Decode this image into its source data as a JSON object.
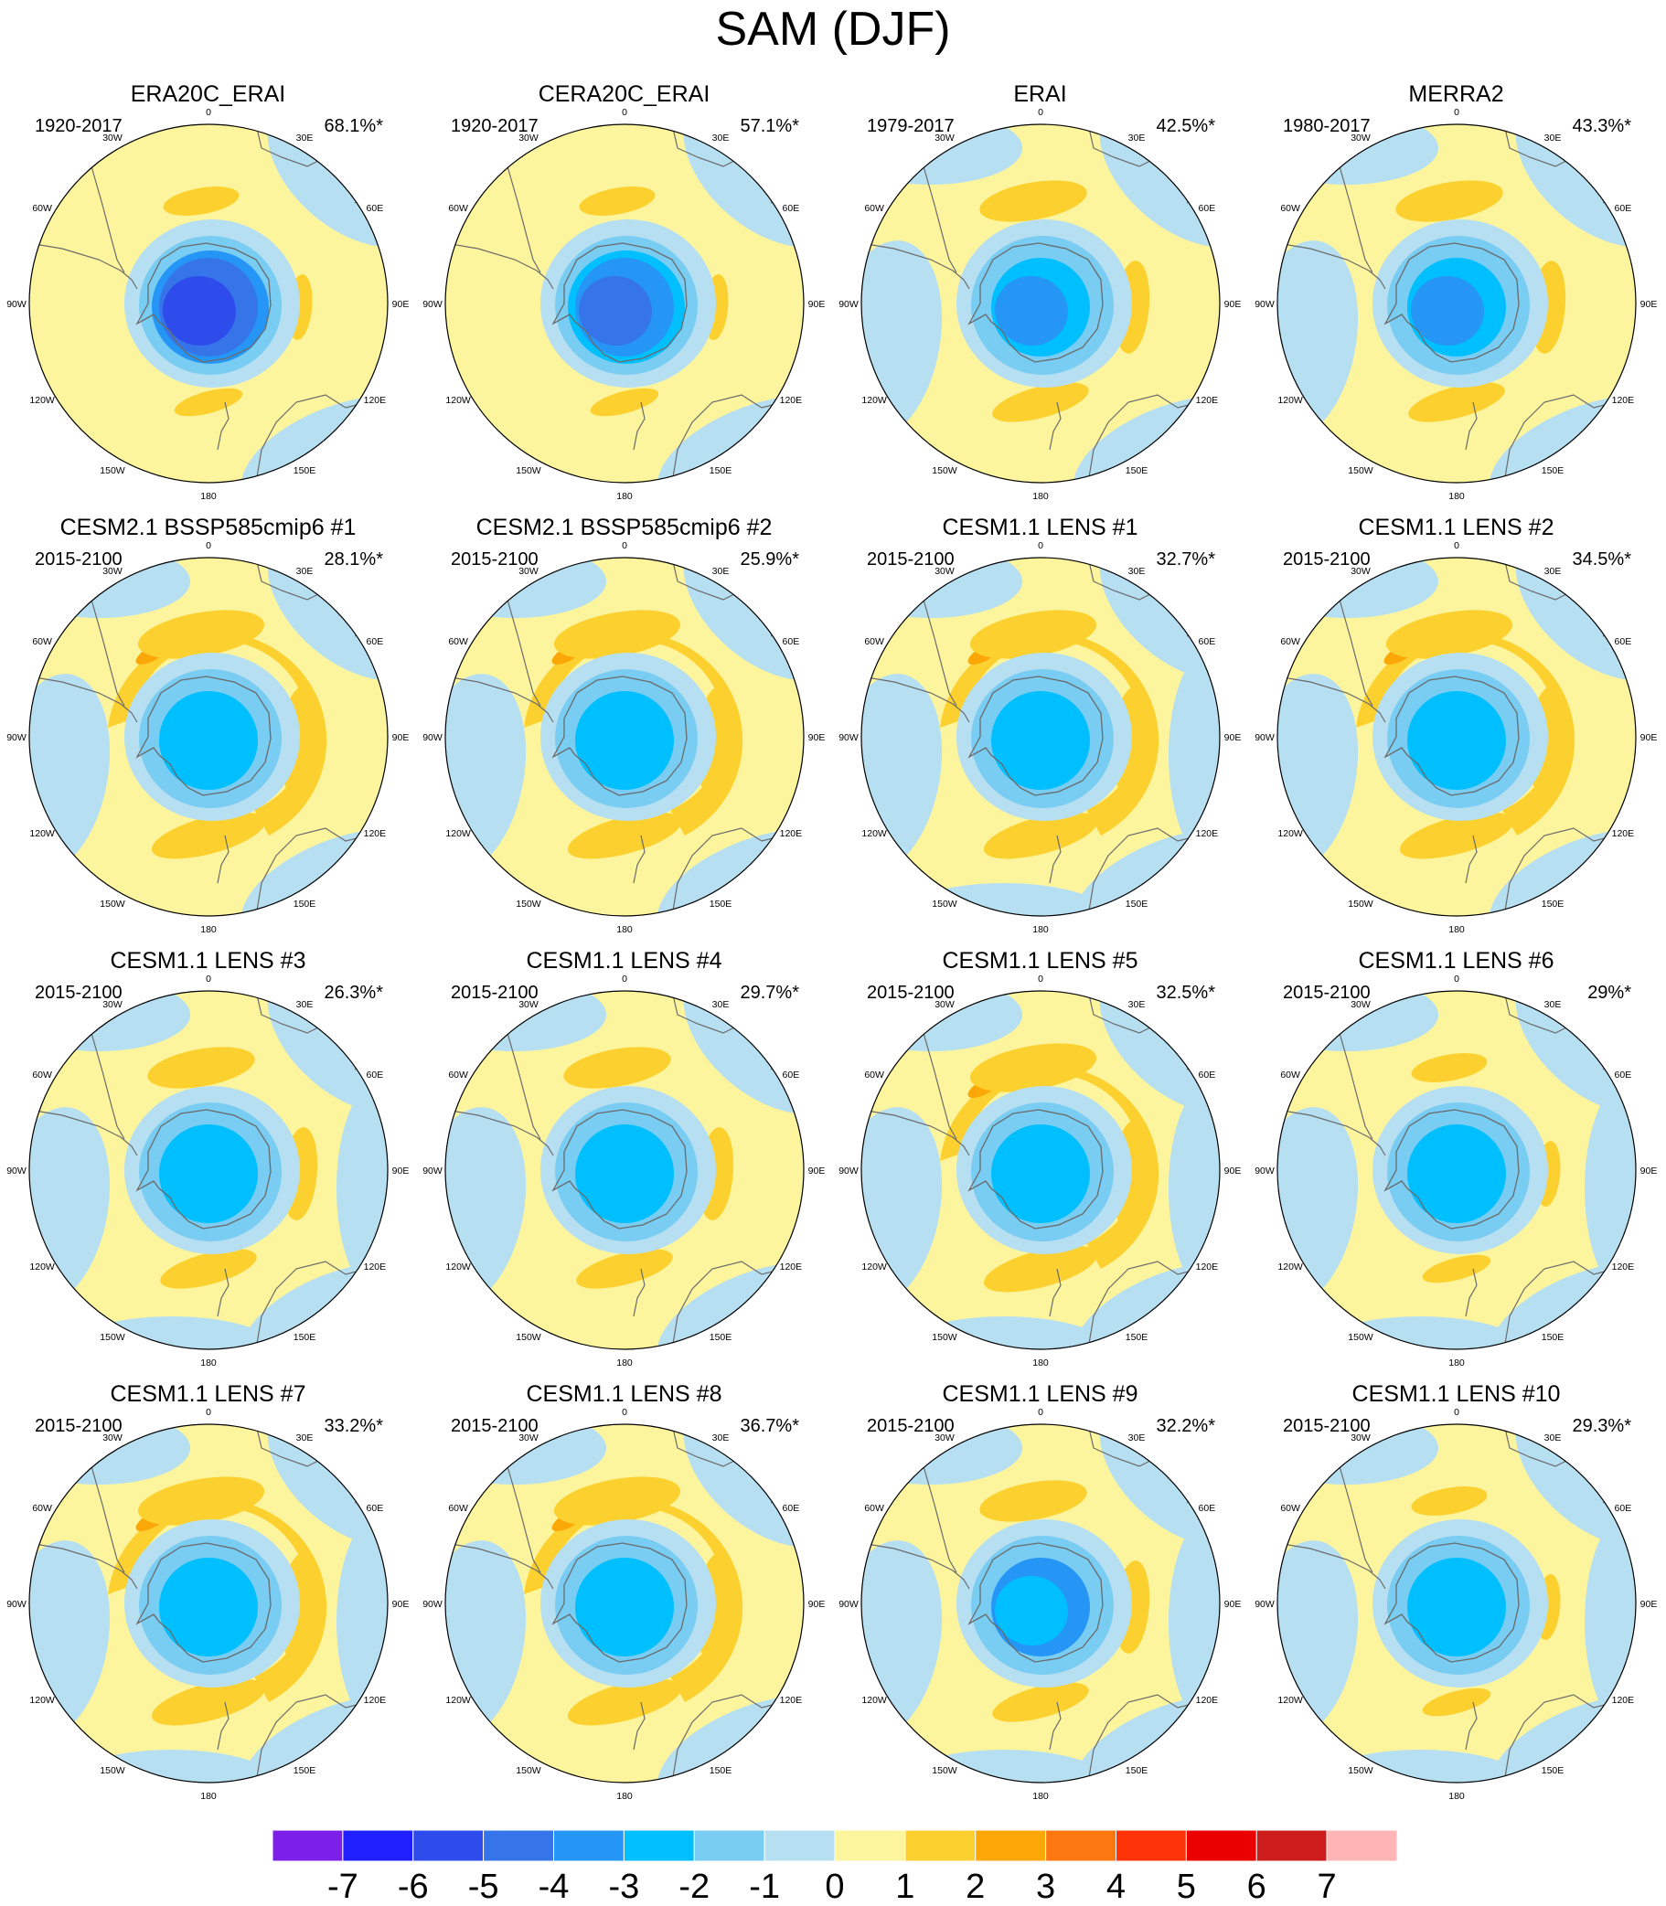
{
  "title": "SAM (DJF)",
  "map": {
    "projection": "south-polar-stereographic",
    "lon_labels": [
      "0",
      "30E",
      "60E",
      "90E",
      "120E",
      "150E",
      "180",
      "150W",
      "120W",
      "90W",
      "60W",
      "30W"
    ]
  },
  "panels": [
    {
      "title": "ERA20C_ERAI",
      "period": "1920-2017",
      "variance": "68.1%*",
      "core_level": -6,
      "mid_level": -5,
      "outer_level": -4,
      "positive_extent": "weak",
      "blue_patches": "few"
    },
    {
      "title": "CERA20C_ERAI",
      "period": "1920-2017",
      "variance": "57.1%*",
      "core_level": -5,
      "mid_level": -4,
      "outer_level": -3,
      "positive_extent": "weak",
      "blue_patches": "few"
    },
    {
      "title": "ERAI",
      "period": "1979-2017",
      "variance": "42.5%*",
      "core_level": -4,
      "mid_level": -3,
      "outer_level": -2,
      "positive_extent": "medium",
      "blue_patches": "some"
    },
    {
      "title": "MERRA2",
      "period": "1980-2017",
      "variance": "43.3%*",
      "core_level": -4,
      "mid_level": -3,
      "outer_level": -2,
      "positive_extent": "medium",
      "blue_patches": "some"
    },
    {
      "title": "CESM2.1 BSSP585cmip6 #1",
      "period": "2015-2100",
      "variance": "28.1%*",
      "core_level": -3,
      "mid_level": -3,
      "outer_level": -2,
      "positive_extent": "strong",
      "blue_patches": "some"
    },
    {
      "title": "CESM2.1 BSSP585cmip6 #2",
      "period": "2015-2100",
      "variance": "25.9%*",
      "core_level": -3,
      "mid_level": -3,
      "outer_level": -2,
      "positive_extent": "strong",
      "blue_patches": "some"
    },
    {
      "title": "CESM1.1 LENS #1",
      "period": "2015-2100",
      "variance": "32.7%*",
      "core_level": -3,
      "mid_level": -3,
      "outer_level": -2,
      "positive_extent": "strong",
      "blue_patches": "many"
    },
    {
      "title": "CESM1.1 LENS #2",
      "period": "2015-2100",
      "variance": "34.5%*",
      "core_level": -3,
      "mid_level": -3,
      "outer_level": -2,
      "positive_extent": "strong",
      "blue_patches": "some"
    },
    {
      "title": "CESM1.1 LENS #3",
      "period": "2015-2100",
      "variance": "26.3%*",
      "core_level": -3,
      "mid_level": -3,
      "outer_level": -2,
      "positive_extent": "medium",
      "blue_patches": "many"
    },
    {
      "title": "CESM1.1 LENS #4",
      "period": "2015-2100",
      "variance": "29.7%*",
      "core_level": -3,
      "mid_level": -3,
      "outer_level": -2,
      "positive_extent": "medium",
      "blue_patches": "some"
    },
    {
      "title": "CESM1.1 LENS #5",
      "period": "2015-2100",
      "variance": "32.5%*",
      "core_level": -3,
      "mid_level": -3,
      "outer_level": -2,
      "positive_extent": "strong",
      "blue_patches": "many"
    },
    {
      "title": "CESM1.1 LENS #6",
      "period": "2015-2100",
      "variance": "29%*",
      "core_level": -3,
      "mid_level": -3,
      "outer_level": -2,
      "positive_extent": "weak",
      "blue_patches": "many"
    },
    {
      "title": "CESM1.1 LENS #7",
      "period": "2015-2100",
      "variance": "33.2%*",
      "core_level": -3,
      "mid_level": -3,
      "outer_level": -2,
      "positive_extent": "strong",
      "blue_patches": "many"
    },
    {
      "title": "CESM1.1 LENS #8",
      "period": "2015-2100",
      "variance": "36.7%*",
      "core_level": -3,
      "mid_level": -3,
      "outer_level": -2,
      "positive_extent": "strong",
      "blue_patches": "some"
    },
    {
      "title": "CESM1.1 LENS #9",
      "period": "2015-2100",
      "variance": "32.2%*",
      "core_level": -3,
      "mid_level": -4,
      "outer_level": -2,
      "positive_extent": "medium",
      "blue_patches": "many"
    },
    {
      "title": "CESM1.1 LENS #10",
      "period": "2015-2100",
      "variance": "29.3%*",
      "core_level": -3,
      "mid_level": -3,
      "outer_level": -2,
      "positive_extent": "weak",
      "blue_patches": "many"
    }
  ],
  "colorbar": {
    "labels": [
      "-7",
      "-6",
      "-5",
      "-4",
      "-3",
      "-2",
      "-1",
      "0",
      "1",
      "2",
      "3",
      "4",
      "5",
      "6",
      "7"
    ],
    "levels": [
      -8,
      -7,
      -6,
      -5,
      -4,
      -3,
      -2,
      -1,
      0,
      1,
      2,
      3,
      4,
      5,
      6,
      7
    ],
    "colors": [
      "#7c1fe8",
      "#1f1fff",
      "#2e4cec",
      "#3674ea",
      "#2596f5",
      "#00bfff",
      "#79ccf2",
      "#b7dff2",
      "#fdf59d",
      "#fcd12f",
      "#fba707",
      "#fd7711",
      "#fe3408",
      "#ea0000",
      "#cd1c1c",
      "#ffb5b5"
    ]
  }
}
